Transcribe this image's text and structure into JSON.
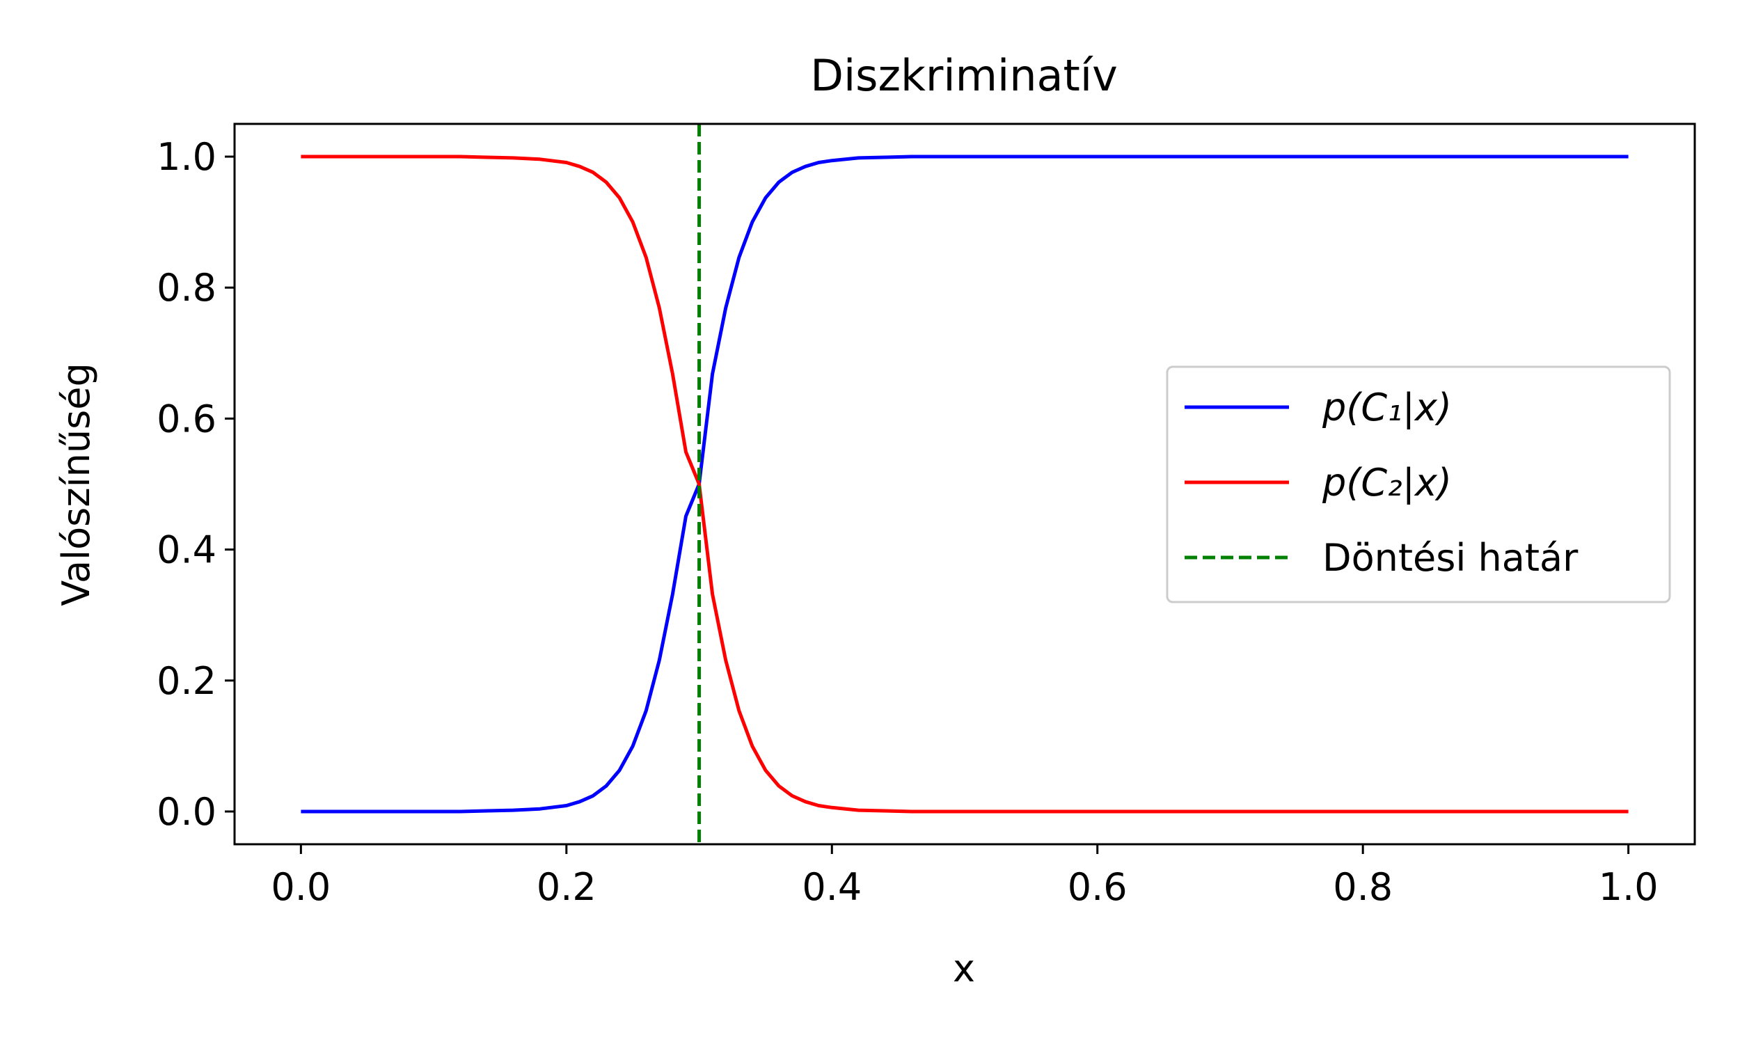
{
  "chart_data": {
    "type": "line",
    "title": "Diszkriminatív",
    "xlabel": "x",
    "ylabel": "Valószínűség",
    "xlim": [
      -0.05,
      1.05
    ],
    "ylim": [
      -0.05,
      1.05
    ],
    "xticks": [
      0.0,
      0.2,
      0.4,
      0.6,
      0.8,
      1.0
    ],
    "xtick_labels": [
      "0.0",
      "0.2",
      "0.4",
      "0.6",
      "0.8",
      "1.0"
    ],
    "yticks": [
      0.0,
      0.2,
      0.4,
      0.6,
      0.8,
      1.0
    ],
    "ytick_labels": [
      "0.0",
      "0.2",
      "0.4",
      "0.6",
      "0.8",
      "1.0"
    ],
    "grid": false,
    "legend_position": "center-right",
    "x": [
      0.0,
      0.02,
      0.04,
      0.06,
      0.08,
      0.1,
      0.12,
      0.14,
      0.16,
      0.18,
      0.2,
      0.21,
      0.22,
      0.23,
      0.24,
      0.25,
      0.26,
      0.27,
      0.28,
      0.29,
      0.3,
      0.31,
      0.32,
      0.33,
      0.34,
      0.35,
      0.36,
      0.37,
      0.38,
      0.39,
      0.4,
      0.42,
      0.44,
      0.46,
      0.48,
      0.5,
      0.55,
      0.6,
      0.65,
      0.7,
      0.75,
      0.8,
      0.85,
      0.9,
      0.95,
      1.0
    ],
    "series": [
      {
        "name": "p(C₁|x)",
        "color": "#0000ff",
        "style": "solid",
        "values": [
          0.0,
          0.0,
          0.0,
          0.0,
          0.0,
          0.0,
          0.0,
          0.001,
          0.002,
          0.004,
          0.009,
          0.015,
          0.024,
          0.039,
          0.063,
          0.1,
          0.154,
          0.231,
          0.332,
          0.451,
          0.5,
          0.668,
          0.769,
          0.846,
          0.9,
          0.937,
          0.961,
          0.976,
          0.985,
          0.991,
          0.994,
          0.998,
          0.999,
          1.0,
          1.0,
          1.0,
          1.0,
          1.0,
          1.0,
          1.0,
          1.0,
          1.0,
          1.0,
          1.0,
          1.0,
          1.0
        ]
      },
      {
        "name": "p(C₂|x)",
        "color": "#ff0000",
        "style": "solid",
        "values": [
          1.0,
          1.0,
          1.0,
          1.0,
          1.0,
          1.0,
          1.0,
          0.999,
          0.998,
          0.996,
          0.991,
          0.985,
          0.976,
          0.961,
          0.937,
          0.9,
          0.846,
          0.769,
          0.668,
          0.549,
          0.5,
          0.332,
          0.231,
          0.154,
          0.1,
          0.063,
          0.039,
          0.024,
          0.015,
          0.009,
          0.006,
          0.002,
          0.001,
          0.0,
          0.0,
          0.0,
          0.0,
          0.0,
          0.0,
          0.0,
          0.0,
          0.0,
          0.0,
          0.0,
          0.0,
          0.0
        ]
      }
    ],
    "vlines": [
      {
        "name": "Döntési határ",
        "x": 0.3,
        "color": "#008000",
        "style": "dashed"
      }
    ]
  }
}
